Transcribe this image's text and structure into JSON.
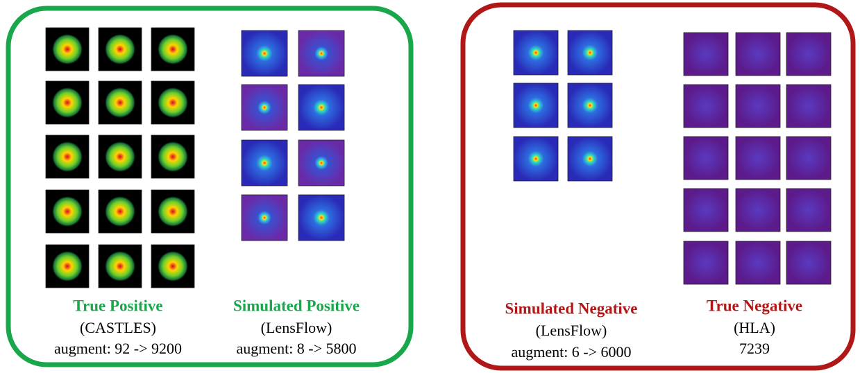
{
  "groups": [
    {
      "title": "True Positive",
      "source": "(CASTLES)",
      "note": "augment: 92 -> 9200"
    },
    {
      "title": "Simulated Positive",
      "source": "(LensFlow)",
      "note": "augment: 8 -> 5800"
    },
    {
      "title": "Simulated Negative",
      "source": "(LensFlow)",
      "note": "augment: 6 -> 6000"
    },
    {
      "title": "True Negative",
      "source": "(HLA)",
      "note": "7239"
    }
  ]
}
